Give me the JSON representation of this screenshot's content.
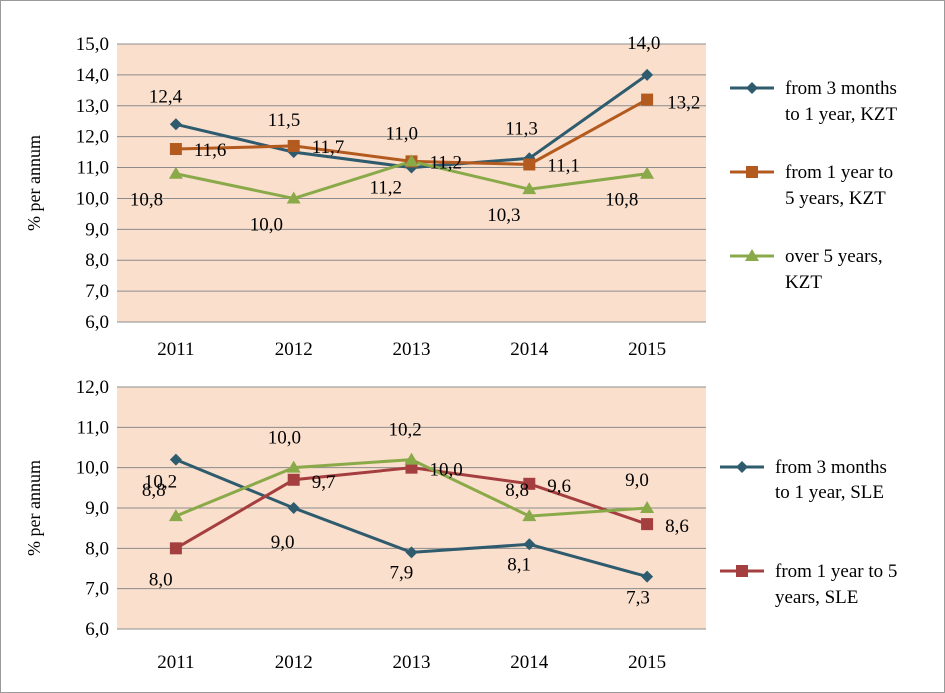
{
  "colors": {
    "plot_bg": "#fadfcd",
    "series1": "#2f5b6e",
    "series2": "#b35a1f",
    "series3": "#8aaa4a",
    "series2_bottom": "#a53f3f"
  },
  "chart_data": [
    {
      "type": "line",
      "title": "",
      "xlabel": "",
      "ylabel": "% per annum",
      "x": [
        "2011",
        "2012",
        "2013",
        "2014",
        "2015"
      ],
      "ylim": [
        6.0,
        15.0
      ],
      "yticks": [
        "6,0",
        "7,0",
        "8,0",
        "9,0",
        "10,0",
        "11,0",
        "12,0",
        "13,0",
        "14,0",
        "15,0"
      ],
      "grid": true,
      "legend_position": "right",
      "series": [
        {
          "name": "from 3 months to 1 year, KZT",
          "legend_lines": [
            "from 3 months",
            "to 1 year, KZT"
          ],
          "marker": "diamond",
          "color": "#2f5b6e",
          "values": [
            12.4,
            11.5,
            11.0,
            11.3,
            14.0
          ],
          "labels": [
            "12,4",
            "11,5",
            "11,0",
            "11,3",
            "14,0"
          ]
        },
        {
          "name": "from 1 year to 5 years, KZT",
          "legend_lines": [
            "from 1 year to",
            "5 years, KZT"
          ],
          "marker": "square",
          "color": "#b35a1f",
          "values": [
            11.6,
            11.7,
            11.2,
            11.1,
            13.2
          ],
          "labels": [
            "11,6",
            "11,7",
            "11,2",
            "11,1",
            "13,2"
          ]
        },
        {
          "name": "over 5 years, KZT",
          "legend_lines": [
            "over 5 years,",
            "KZT"
          ],
          "marker": "triangle",
          "color": "#8aaa4a",
          "values": [
            10.8,
            10.0,
            11.2,
            10.3,
            10.8
          ],
          "labels": [
            "10,8",
            "10,0",
            "11,2",
            "10,3",
            "10,8"
          ]
        }
      ]
    },
    {
      "type": "line",
      "title": "",
      "xlabel": "",
      "ylabel": "% per annum",
      "x": [
        "2011",
        "2012",
        "2013",
        "2014",
        "2015"
      ],
      "ylim": [
        6.0,
        12.0
      ],
      "yticks": [
        "6,0",
        "7,0",
        "8,0",
        "9,0",
        "10,0",
        "11,0",
        "12,0"
      ],
      "grid": true,
      "legend_position": "right",
      "series": [
        {
          "name": "from 3 months to 1 year, SLE",
          "legend_lines": [
            "from 3 months",
            "to 1 year, SLE"
          ],
          "marker": "diamond",
          "color": "#2f5b6e",
          "values": [
            10.2,
            9.0,
            7.9,
            8.1,
            7.3
          ],
          "labels": [
            "10,2",
            "9,0",
            "7,9",
            "8,1",
            "7,3"
          ]
        },
        {
          "name": "from 1 year to 5 years, SLE",
          "legend_lines": [
            "from 1 year to 5",
            "years, SLE"
          ],
          "marker": "square",
          "color": "#a53f3f",
          "values": [
            8.0,
            9.7,
            10.0,
            9.6,
            8.6
          ],
          "labels": [
            "8,0",
            "9,7",
            "10,0",
            "9,6",
            "8,6"
          ]
        },
        {
          "name": "",
          "legend_lines": [],
          "marker": "triangle",
          "color": "#8aaa4a",
          "values": [
            8.8,
            10.0,
            10.2,
            8.8,
            9.0
          ],
          "labels": [
            "8,8",
            "10,0",
            "10,2",
            "8,8",
            "9,0"
          ]
        }
      ]
    }
  ]
}
